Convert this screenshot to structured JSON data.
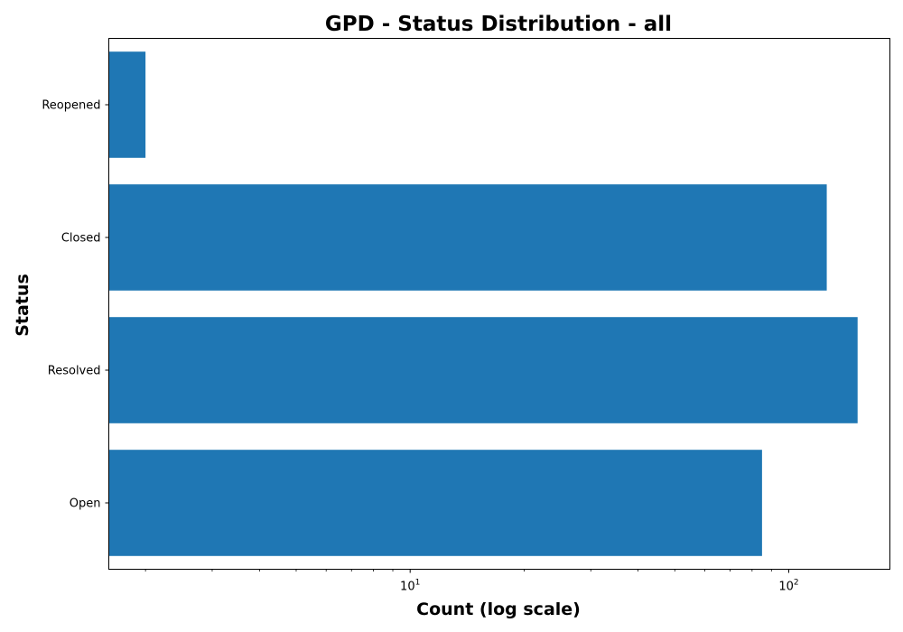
{
  "chart_data": {
    "type": "bar",
    "orientation": "horizontal",
    "title": "GPD - Status Distribution - all",
    "xlabel": "Count (log scale)",
    "ylabel": "Status",
    "xscale": "log",
    "xlim": [
      1.6,
      185
    ],
    "categories": [
      "Open",
      "Resolved",
      "Closed",
      "Reopened"
    ],
    "values": [
      85,
      152,
      126,
      2
    ],
    "x_major_ticks": [
      {
        "base": "10",
        "exponent": "1",
        "value": 10
      },
      {
        "base": "10",
        "exponent": "2",
        "value": 100
      }
    ],
    "bar_color": "#1f77b4",
    "grid": false,
    "legend": "none"
  }
}
